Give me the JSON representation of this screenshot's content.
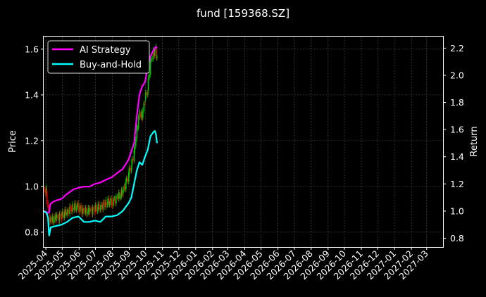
{
  "chart_data": {
    "type": "line",
    "title": "fund [159368.SZ]",
    "ylabel_left": "Price",
    "ylabel_right": "Return",
    "xlim": [
      "2025-03-28",
      "2027-03-31"
    ],
    "ylim_left": [
      0.735,
      1.655
    ],
    "ylim_right": [
      0.735,
      2.285
    ],
    "y_ticks_left": [
      "0.8",
      "1.0",
      "1.2",
      "1.4",
      "1.6"
    ],
    "y_ticks_right": [
      "0.8",
      "1.0",
      "1.2",
      "1.4",
      "1.6",
      "1.8",
      "2.0",
      "2.2"
    ],
    "x_ticks": [
      "2025-04",
      "2025-05",
      "2025-06",
      "2025-07",
      "2025-08",
      "2025-09",
      "2025-10",
      "2025-11",
      "2025-12",
      "2026-01",
      "2026-02",
      "2026-03",
      "2026-04",
      "2026-05",
      "2026-06",
      "2026-07",
      "2026-08",
      "2026-09",
      "2026-10",
      "2026-11",
      "2026-12",
      "2027-01",
      "2027-02",
      "2027-03"
    ],
    "grid": true,
    "legend_position": "top-left",
    "series": [
      {
        "name": "AI Strategy",
        "axis": "right",
        "color": "#ff00ff",
        "points": [
          [
            "2025-03-28",
            1.0
          ],
          [
            "2025-04-01",
            0.995
          ],
          [
            "2025-04-03",
            0.99
          ],
          [
            "2025-04-04",
            0.985
          ],
          [
            "2025-04-07",
            0.99
          ],
          [
            "2025-04-09",
            1.05
          ],
          [
            "2025-04-15",
            1.07
          ],
          [
            "2025-04-22",
            1.08
          ],
          [
            "2025-04-30",
            1.09
          ],
          [
            "2025-05-08",
            1.12
          ],
          [
            "2025-05-15",
            1.14
          ],
          [
            "2025-05-22",
            1.16
          ],
          [
            "2025-05-30",
            1.17
          ],
          [
            "2025-06-10",
            1.18
          ],
          [
            "2025-06-20",
            1.18
          ],
          [
            "2025-06-30",
            1.2
          ],
          [
            "2025-07-10",
            1.21
          ],
          [
            "2025-07-20",
            1.23
          ],
          [
            "2025-07-31",
            1.25
          ],
          [
            "2025-08-10",
            1.28
          ],
          [
            "2025-08-20",
            1.31
          ],
          [
            "2025-08-31",
            1.38
          ],
          [
            "2025-09-05",
            1.44
          ],
          [
            "2025-09-10",
            1.5
          ],
          [
            "2025-09-15",
            1.7
          ],
          [
            "2025-09-20",
            1.86
          ],
          [
            "2025-09-25",
            1.92
          ],
          [
            "2025-09-30",
            1.95
          ],
          [
            "2025-10-05",
            2.05
          ],
          [
            "2025-10-10",
            2.14
          ],
          [
            "2025-10-15",
            2.18
          ],
          [
            "2025-10-20",
            2.21
          ],
          [
            "2025-10-22",
            2.2
          ]
        ]
      },
      {
        "name": "Buy-and-Hold",
        "axis": "right",
        "color": "#00ffff",
        "points": [
          [
            "2025-03-28",
            1.0
          ],
          [
            "2025-04-01",
            0.99
          ],
          [
            "2025-04-03",
            0.98
          ],
          [
            "2025-04-05",
            0.95
          ],
          [
            "2025-04-07",
            0.82
          ],
          [
            "2025-04-10",
            0.88
          ],
          [
            "2025-04-20",
            0.89
          ],
          [
            "2025-04-30",
            0.9
          ],
          [
            "2025-05-10",
            0.92
          ],
          [
            "2025-05-20",
            0.95
          ],
          [
            "2025-05-31",
            0.96
          ],
          [
            "2025-06-10",
            0.92
          ],
          [
            "2025-06-20",
            0.92
          ],
          [
            "2025-06-30",
            0.93
          ],
          [
            "2025-07-10",
            0.92
          ],
          [
            "2025-07-20",
            0.96
          ],
          [
            "2025-07-31",
            0.96
          ],
          [
            "2025-08-10",
            0.97
          ],
          [
            "2025-08-20",
            1.0
          ],
          [
            "2025-08-31",
            1.06
          ],
          [
            "2025-09-05",
            1.1
          ],
          [
            "2025-09-10",
            1.2
          ],
          [
            "2025-09-15",
            1.3
          ],
          [
            "2025-09-20",
            1.36
          ],
          [
            "2025-09-25",
            1.34
          ],
          [
            "2025-09-30",
            1.4
          ],
          [
            "2025-10-05",
            1.45
          ],
          [
            "2025-10-10",
            1.55
          ],
          [
            "2025-10-15",
            1.58
          ],
          [
            "2025-10-18",
            1.59
          ],
          [
            "2025-10-20",
            1.57
          ],
          [
            "2025-10-22",
            1.5
          ]
        ]
      },
      {
        "name": "price",
        "axis": "left",
        "style": "candlestick",
        "color_up": "#00c800",
        "color_down": "#e60000",
        "points": [
          [
            "2025-03-28",
            0.99
          ],
          [
            "2025-04-02",
            0.98
          ],
          [
            "2025-04-07",
            0.87
          ],
          [
            "2025-04-10",
            0.85
          ],
          [
            "2025-04-20",
            0.86
          ],
          [
            "2025-04-30",
            0.87
          ],
          [
            "2025-05-10",
            0.89
          ],
          [
            "2025-05-20",
            0.91
          ],
          [
            "2025-05-31",
            0.91
          ],
          [
            "2025-06-10",
            0.89
          ],
          [
            "2025-06-20",
            0.89
          ],
          [
            "2025-06-30",
            0.9
          ],
          [
            "2025-07-10",
            0.91
          ],
          [
            "2025-07-20",
            0.93
          ],
          [
            "2025-07-31",
            0.93
          ],
          [
            "2025-08-10",
            0.95
          ],
          [
            "2025-08-20",
            0.97
          ],
          [
            "2025-08-31",
            1.05
          ],
          [
            "2025-09-05",
            1.09
          ],
          [
            "2025-09-10",
            1.15
          ],
          [
            "2025-09-15",
            1.25
          ],
          [
            "2025-09-20",
            1.32
          ],
          [
            "2025-09-25",
            1.3
          ],
          [
            "2025-09-30",
            1.38
          ],
          [
            "2025-10-05",
            1.42
          ],
          [
            "2025-10-10",
            1.55
          ],
          [
            "2025-10-15",
            1.58
          ],
          [
            "2025-10-20",
            1.6
          ],
          [
            "2025-10-22",
            1.55
          ]
        ]
      }
    ]
  }
}
